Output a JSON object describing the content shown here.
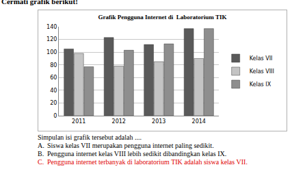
{
  "header": "Cermati grafik berikut!",
  "chart_data": {
    "type": "bar",
    "title": "Grafik Pengguna Internet di  Laboratorium TIK",
    "categories": [
      "2011",
      "2012",
      "2013",
      "2014"
    ],
    "series": [
      {
        "name": "Kelas VII",
        "color": "#5a5a5a",
        "values": [
          105,
          123,
          112,
          137
        ]
      },
      {
        "name": "Kelas VIII",
        "color": "#c4c4c4",
        "values": [
          98,
          78,
          85,
          90
        ]
      },
      {
        "name": "Kelas IX",
        "color": "#8e8e8e",
        "values": [
          77,
          103,
          113,
          137
        ]
      }
    ],
    "ylim": [
      0,
      140
    ],
    "yticks": [
      0,
      20,
      40,
      60,
      80,
      100,
      120,
      140
    ],
    "grid": true,
    "legend": "right"
  },
  "question": "Simpulan isi grafik tersebut adalah ....",
  "options": [
    {
      "letter": "A.",
      "text": "Siswa kelas VII merupakan pengguna internet paling sedikit.",
      "color": "#000000"
    },
    {
      "letter": "B.",
      "text": "Pengguna internet kelas VIII lebih sedikit dibandingkan kelas IX.",
      "color": "#000000"
    },
    {
      "letter": "C.",
      "text": "Pengguna internet terbanyak di laboratorium TIK  adalah siswa kelas VII.",
      "color": "#e00000"
    }
  ]
}
